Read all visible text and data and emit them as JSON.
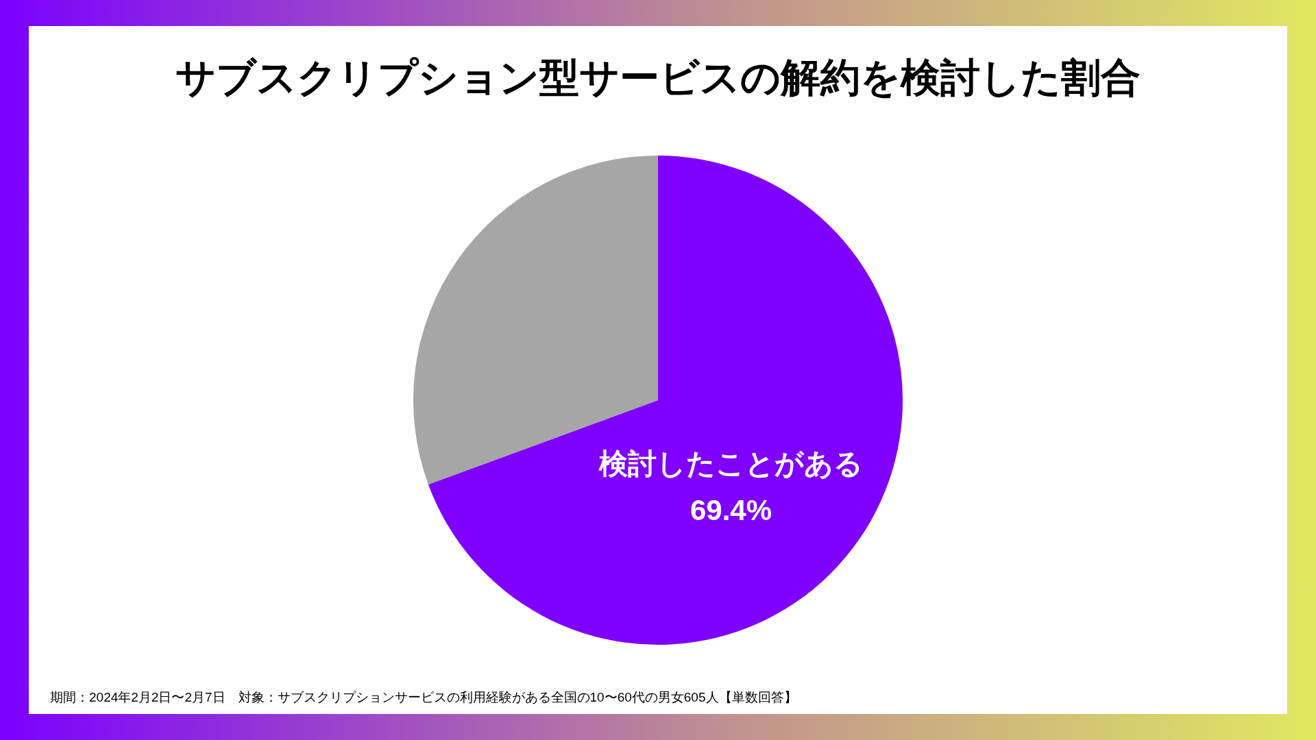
{
  "chart_data": {
    "type": "pie",
    "title": "サブスクリプション型サービスの解約を検討した割合",
    "categories": [
      "検討したことがある",
      null
    ],
    "values": [
      69.4,
      30.6
    ],
    "colors": [
      "#8000ff",
      "#a6a6a6"
    ],
    "value_labels": [
      "69.4%",
      null
    ],
    "annotations": [
      "期間：2024年2月2日〜2月7日　対象：サブスクリプションサービスの利用経験がある全国の10〜60代の男女605人【単数回答】"
    ]
  }
}
